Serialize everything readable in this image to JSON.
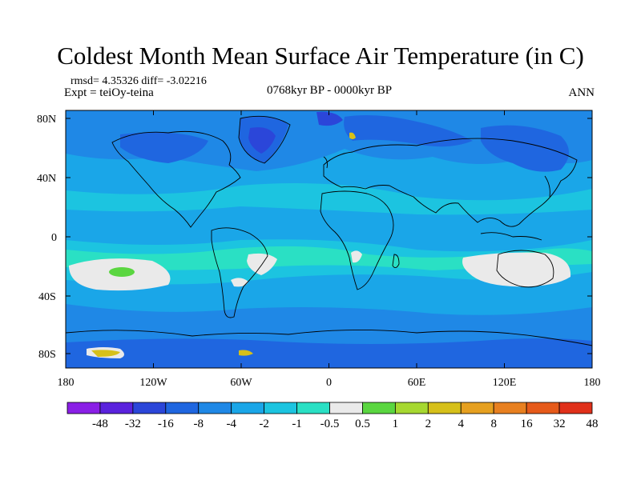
{
  "title": "Coldest Month Mean Surface Air Temperature (in C)",
  "stats": "rmsd= 4.35326 diff= -3.02216",
  "expt": "Expt = teiOy-teina",
  "period": "0768kyr BP - 0000kyr BP",
  "season": "ANN",
  "lat_labels": [
    "80N",
    "40N",
    "0",
    "40S",
    "80S"
  ],
  "lon_labels": [
    "180",
    "120W",
    "60W",
    "0",
    "60E",
    "120E",
    "180"
  ],
  "colorbar": {
    "labels": [
      "-48",
      "-32",
      "-16",
      "-8",
      "-4",
      "-2",
      "-1",
      "-0.5",
      "0.5",
      "1",
      "2",
      "4",
      "8",
      "16",
      "32",
      "48"
    ],
    "colors": [
      "#8a1fe6",
      "#5a22dd",
      "#2b46d9",
      "#1f66e0",
      "#1f88e6",
      "#1aa6e8",
      "#1cc4e0",
      "#2ae0c4",
      "#eaeaea",
      "#5ad640",
      "#a6d830",
      "#d6c01a",
      "#e6a020",
      "#e88020",
      "#e65a1a",
      "#e0301a"
    ]
  },
  "colors": {
    "ocean_main": "#1aa6e8",
    "ocean_warm": "#1cc4e0",
    "cold": "#1f88e6",
    "colder": "#1f66e0",
    "coldest": "#2b46d9",
    "neutral": "#eaeaea",
    "warm_green": "#5ad640",
    "warm_yellow": "#d6c01a",
    "coast": "#000000"
  }
}
